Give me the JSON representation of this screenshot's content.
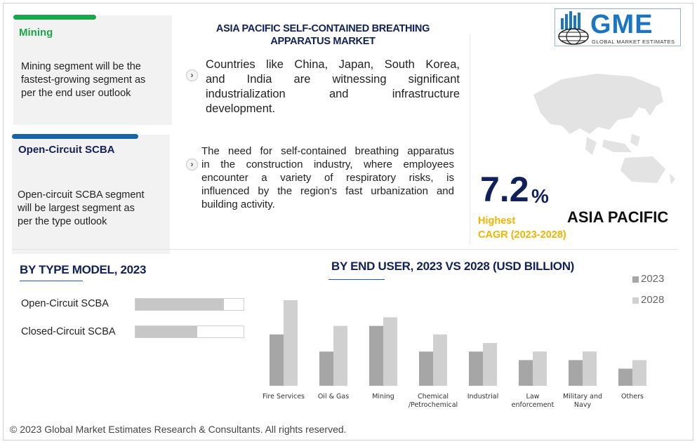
{
  "cards": [
    {
      "title": "Mining",
      "text": [
        "Mining segment will be the",
        "fastest-growing segment as",
        "per the end user outlook"
      ],
      "accent": "#1aa64a",
      "title_color": "#1aa64a"
    },
    {
      "title": "Open-Circuit SCBA",
      "text": [
        "Open-circuit SCBA segment",
        "will be largest segment as",
        "per the type outlook"
      ],
      "accent": "#1565a8",
      "title_color": "#12205a"
    }
  ],
  "main_title": [
    "ASIA PACIFIC SELF-CONTAINED BREATHING",
    "APPARATUS MARKET"
  ],
  "paragraphs": [
    [
      "Countries like China, Japan, South Korea,",
      "and India are witnessing significant",
      "industrialization and infrastructure",
      "development."
    ],
    [
      "The need for self-contained breathing apparatus",
      "in the construction industry, where employees",
      "encounter a variety of respiratory risks, is",
      "influenced by the region's fast urbanization and",
      "building activity."
    ]
  ],
  "chevron_icon": "chevron-right-icon",
  "logo": {
    "text": "GME",
    "subtitle": "GLOBAL MARKET ESTIMATES",
    "icon": "globe-buildings-icon"
  },
  "map_icon": "asia-pacific-map-icon",
  "stat": {
    "value": "7.2",
    "unit": "%",
    "label1": "Highest",
    "label2": "CAGR (2023-2028)",
    "region": "ASIA PACIFIC"
  },
  "type_model": {
    "title": "BY TYPE MODEL, 2023",
    "items": [
      {
        "label": "Open-Circuit SCBA",
        "share": 0.82
      },
      {
        "label": "Closed-Circuit SCBA",
        "share": 0.57
      }
    ]
  },
  "chart_data": {
    "type": "bar",
    "title": "BY END USER, 2023 VS 2028 (USD BILLION)",
    "categories": [
      [
        "Fire Services"
      ],
      [
        "Oil & Gas"
      ],
      [
        "Mining"
      ],
      [
        "Chemical",
        "/Petrochemical"
      ],
      [
        "Industrial"
      ],
      [
        "Law",
        "enforcement"
      ],
      [
        "Military and",
        "Navy"
      ],
      [
        "Others"
      ]
    ],
    "series": [
      {
        "name": "2023",
        "values": [
          6.0,
          4.0,
          7.0,
          4.0,
          4.0,
          3.0,
          3.0,
          2.0
        ],
        "color": "#a6a6a6"
      },
      {
        "name": "2028",
        "values": [
          10.0,
          7.0,
          8.0,
          6.0,
          5.0,
          4.0,
          4.0,
          3.0
        ],
        "color": "#d0d0d0"
      }
    ],
    "ylim": [
      0,
      10
    ],
    "legend": "top-right",
    "grid": false
  },
  "footer": "© 2023 Global Market Estimates Research & Consultants. All rights reserved."
}
